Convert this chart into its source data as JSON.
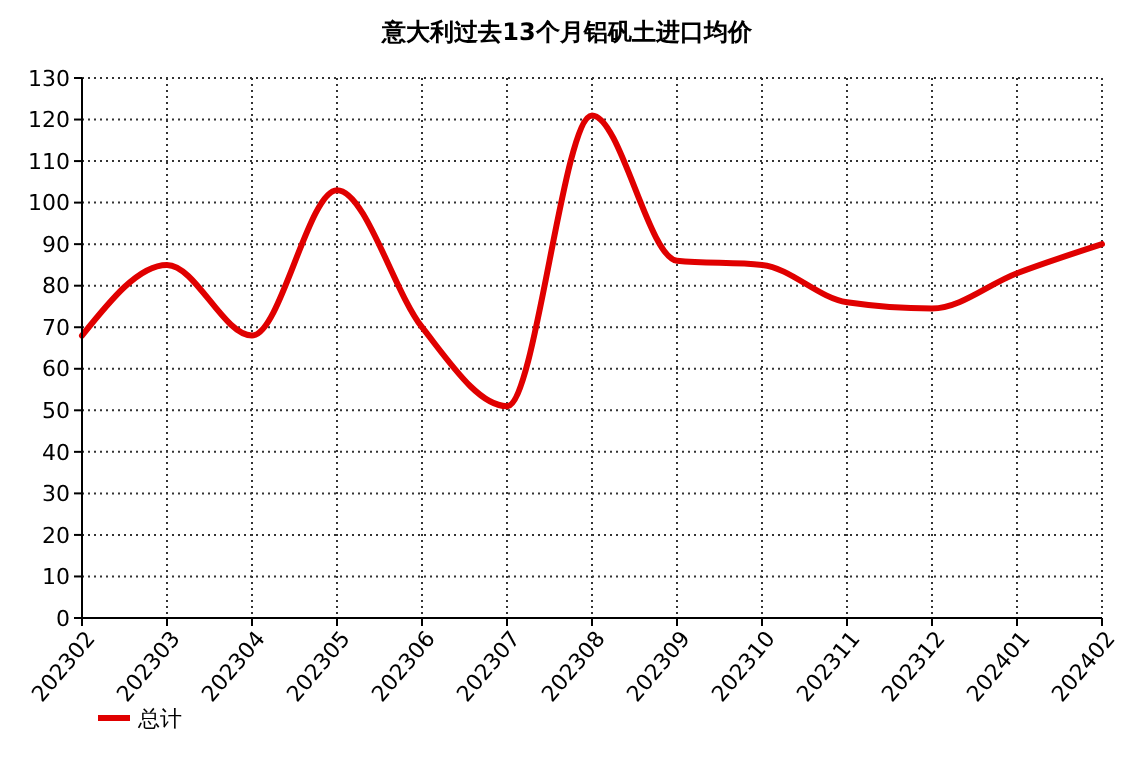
{
  "chart_data": {
    "type": "line",
    "title": "意大利过去13个月铝矾土进口均价",
    "categories": [
      "202302",
      "202303",
      "202304",
      "202305",
      "202306",
      "202307",
      "202308",
      "202309",
      "202310",
      "202311",
      "202312",
      "202401",
      "202402"
    ],
    "series": [
      {
        "name": "总计",
        "color": "#e00000",
        "values": [
          68,
          85,
          68,
          103,
          70,
          51,
          121,
          86,
          85,
          76,
          74.5,
          83,
          90
        ]
      }
    ],
    "ylim": [
      0,
      130
    ],
    "yticks": [
      0,
      10,
      20,
      30,
      40,
      50,
      60,
      70,
      80,
      90,
      100,
      110,
      120,
      130
    ],
    "grid": true,
    "legend": "bottom left",
    "marker": "none",
    "line_style": "solid"
  }
}
